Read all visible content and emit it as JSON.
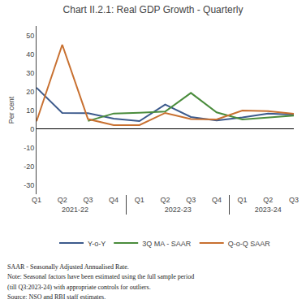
{
  "chart_data": {
    "type": "line",
    "title": "Chart II.2.1: Real GDP Growth - Quarterly",
    "ylabel": "Per cent",
    "categories": [
      "Q1",
      "Q2",
      "Q3",
      "Q4",
      "Q1",
      "Q2",
      "Q3",
      "Q4",
      "Q1",
      "Q2",
      "Q3"
    ],
    "fiscal_years": [
      "2021-22",
      "2021-22",
      "2021-22",
      "2021-22",
      "2022-23",
      "2022-23",
      "2022-23",
      "2022-23",
      "2023-24",
      "2023-24",
      "2023-24"
    ],
    "series": [
      {
        "name": "Y-o-Y",
        "color": "#3c5a8c",
        "values": [
          22.0,
          8.5,
          8.4,
          5.4,
          4.1,
          13.0,
          6.3,
          4.5,
          6.1,
          8.2,
          7.6
        ]
      },
      {
        "name": "3Q MA - SAAR",
        "color": "#4a8c3c",
        "values": [
          null,
          null,
          4.2,
          8.2,
          8.6,
          9.2,
          19.2,
          8.8,
          5.0,
          6.1,
          7.1
        ]
      },
      {
        "name": "Q-o-Q SAAR",
        "color": "#c87030",
        "values": [
          4.0,
          45.0,
          5.2,
          2.0,
          2.0,
          8.5,
          5.2,
          5.0,
          9.8,
          9.5,
          8.0
        ]
      }
    ],
    "ylim": [
      -35,
      55
    ],
    "yticks": [
      -30,
      -20,
      -10,
      0,
      10,
      20,
      30,
      40,
      50
    ],
    "grid": false,
    "legend": "bottom",
    "annotations": [
      "SAAR - Seasonally Adjusted Annualised Rate.",
      "Note: Seasonal factors have been estimated using the full sample period",
      "(till Q3:2023-24) with appropriate controls for outliers.",
      "Source: NSO and RBI staff estimates."
    ]
  }
}
